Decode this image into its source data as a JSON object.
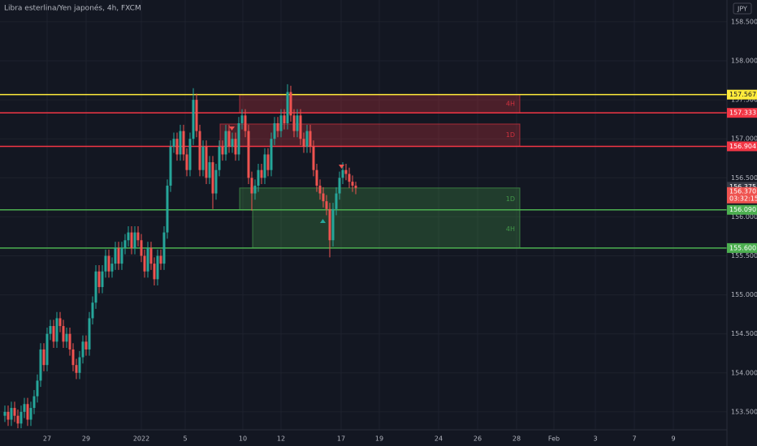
{
  "chart_data": {
    "type": "candlestick",
    "title": "Libra esterlina/Yen japonés, 4h, FXCM",
    "currency": "JPY",
    "open": [
      153.45,
      153.5,
      153.4,
      153.55,
      153.45,
      153.35,
      153.5,
      153.6,
      153.4,
      153.55,
      153.7,
      153.9,
      154.3,
      154.1,
      154.5,
      154.6,
      154.4,
      154.7,
      154.6,
      154.4,
      154.5,
      154.3,
      154.1,
      154.0,
      154.2,
      154.4,
      154.3,
      154.7,
      154.9,
      155.3,
      155.1,
      155.3,
      155.5,
      155.3,
      155.4,
      155.6,
      155.4,
      155.6,
      155.7,
      155.8,
      155.6,
      155.8,
      155.7,
      155.5,
      155.3,
      155.6,
      155.4,
      155.2,
      155.5,
      155.4,
      155.8,
      156.4,
      156.9,
      157.0,
      156.8,
      157.1,
      156.8,
      156.6,
      157.0,
      157.5,
      157.1,
      156.6,
      156.9,
      156.5,
      156.7,
      156.3,
      156.6,
      156.9,
      156.8,
      157.1,
      156.9,
      157.0,
      156.8,
      157.2,
      157.3,
      157.1,
      156.5,
      156.3,
      156.4,
      156.6,
      156.5,
      156.8,
      156.6,
      157.0,
      157.2,
      157.1,
      157.3,
      157.2,
      157.6,
      157.3,
      157.1,
      157.3,
      157.0,
      156.9,
      157.1,
      156.9,
      156.6,
      156.4,
      156.3,
      156.2,
      156.1,
      155.7,
      156.1,
      156.3,
      156.5,
      156.6,
      156.55,
      156.45,
      156.4
    ],
    "high": [
      153.58,
      153.58,
      153.63,
      153.63,
      153.53,
      153.58,
      153.68,
      153.68,
      153.63,
      153.78,
      153.98,
      154.38,
      154.38,
      154.58,
      154.68,
      154.68,
      154.78,
      154.78,
      154.68,
      154.58,
      154.58,
      154.38,
      154.18,
      154.28,
      154.48,
      154.48,
      154.78,
      154.98,
      155.38,
      155.38,
      155.38,
      155.58,
      155.58,
      155.48,
      155.68,
      155.68,
      155.68,
      155.78,
      155.88,
      155.88,
      155.88,
      155.88,
      155.78,
      155.58,
      155.68,
      155.68,
      155.48,
      155.58,
      155.58,
      155.88,
      156.48,
      156.98,
      157.08,
      157.08,
      157.18,
      157.18,
      156.88,
      157.08,
      157.65,
      157.58,
      157.18,
      156.98,
      156.98,
      156.78,
      156.78,
      156.68,
      156.98,
      156.98,
      157.18,
      157.18,
      157.08,
      157.08,
      157.28,
      157.38,
      157.38,
      157.18,
      156.58,
      156.48,
      156.68,
      156.68,
      156.88,
      156.88,
      157.08,
      157.28,
      157.28,
      157.38,
      157.38,
      157.7,
      157.68,
      157.38,
      157.38,
      157.38,
      157.08,
      157.18,
      157.18,
      156.98,
      156.68,
      156.48,
      156.38,
      156.28,
      156.18,
      156.18,
      156.38,
      156.58,
      156.7,
      156.68,
      156.63,
      156.53,
      156.45
    ],
    "low": [
      153.37,
      153.32,
      153.32,
      153.37,
      153.29,
      153.29,
      153.42,
      153.32,
      153.32,
      153.47,
      153.62,
      153.82,
      154.02,
      154.02,
      154.42,
      154.32,
      154.32,
      154.52,
      154.32,
      154.32,
      154.22,
      154.02,
      153.92,
      153.92,
      154.12,
      154.22,
      154.22,
      154.62,
      154.82,
      155.02,
      155.02,
      155.22,
      155.22,
      155.22,
      155.32,
      155.32,
      155.32,
      155.52,
      155.62,
      155.52,
      155.52,
      155.62,
      155.42,
      155.22,
      155.22,
      155.32,
      155.12,
      155.12,
      155.32,
      155.32,
      155.72,
      156.32,
      156.82,
      156.72,
      156.72,
      156.72,
      156.52,
      156.52,
      156.92,
      157.02,
      156.52,
      156.52,
      156.42,
      156.42,
      156.1,
      156.22,
      156.52,
      156.72,
      156.72,
      156.82,
      156.82,
      156.72,
      156.72,
      157.12,
      157.02,
      156.42,
      156.08,
      156.22,
      156.32,
      156.42,
      156.42,
      156.52,
      156.52,
      156.92,
      157.02,
      157.02,
      157.12,
      157.12,
      157.22,
      157.02,
      157.02,
      156.92,
      156.82,
      156.82,
      156.82,
      156.52,
      156.32,
      156.22,
      156.12,
      156.02,
      155.48,
      155.62,
      156.02,
      156.22,
      156.42,
      156.47,
      156.37,
      156.32,
      156.29
    ],
    "close": [
      153.5,
      153.4,
      153.55,
      153.45,
      153.35,
      153.5,
      153.6,
      153.4,
      153.55,
      153.7,
      153.9,
      154.3,
      154.1,
      154.5,
      154.6,
      154.4,
      154.7,
      154.6,
      154.4,
      154.5,
      154.3,
      154.1,
      154.0,
      154.2,
      154.4,
      154.3,
      154.7,
      154.9,
      155.3,
      155.1,
      155.3,
      155.5,
      155.3,
      155.4,
      155.6,
      155.4,
      155.6,
      155.7,
      155.8,
      155.6,
      155.8,
      155.7,
      155.5,
      155.3,
      155.6,
      155.4,
      155.2,
      155.5,
      155.4,
      155.8,
      156.4,
      156.9,
      157.0,
      156.8,
      157.1,
      156.8,
      156.6,
      157.0,
      157.5,
      157.1,
      156.6,
      156.9,
      156.5,
      156.7,
      156.3,
      156.6,
      156.9,
      156.8,
      157.1,
      156.9,
      157.0,
      156.8,
      157.2,
      157.3,
      157.1,
      156.5,
      156.3,
      156.4,
      156.6,
      156.5,
      156.8,
      156.6,
      157.0,
      157.2,
      157.1,
      157.3,
      157.2,
      157.6,
      157.3,
      157.1,
      157.3,
      157.0,
      156.9,
      157.1,
      156.9,
      156.6,
      156.4,
      156.3,
      156.2,
      156.1,
      155.7,
      156.1,
      156.3,
      156.5,
      156.6,
      156.55,
      156.45,
      156.4,
      156.37
    ],
    "up_color": "#26a69a",
    "down_color": "#ef5350",
    "xlim": [
      -1.5,
      222.25
    ],
    "ylim": [
      153.27,
      158.78
    ],
    "xticks": [
      {
        "value": 13,
        "label": "27"
      },
      {
        "value": 25,
        "label": "29"
      },
      {
        "value": 42,
        "label": "2022"
      },
      {
        "value": 55.5,
        "label": "5"
      },
      {
        "value": 73.25,
        "label": "10"
      },
      {
        "value": 85,
        "label": "12"
      },
      {
        "value": 103.5,
        "label": "17"
      },
      {
        "value": 115.25,
        "label": "19"
      },
      {
        "value": 133.5,
        "label": "24"
      },
      {
        "value": 145.5,
        "label": "26"
      },
      {
        "value": 157.5,
        "label": "28"
      },
      {
        "value": 169,
        "label": "Feb"
      },
      {
        "value": 181.75,
        "label": "3"
      },
      {
        "value": 193.75,
        "label": "7"
      },
      {
        "value": 205.75,
        "label": "9"
      }
    ],
    "yticks": [
      {
        "value": 153.5,
        "label": "153.500"
      },
      {
        "value": 154,
        "label": "154.000"
      },
      {
        "value": 154.5,
        "label": "154.500"
      },
      {
        "value": 155,
        "label": "155.000"
      },
      {
        "value": 155.5,
        "label": "155.500"
      },
      {
        "value": 156,
        "label": "156.000"
      },
      {
        "value": 156.5,
        "label": "156.500"
      },
      {
        "value": 157,
        "label": "157.000"
      },
      {
        "value": 157.5,
        "label": "157.500"
      },
      {
        "value": 158,
        "label": "158.000"
      },
      {
        "value": 158.5,
        "label": "158.500"
      }
    ],
    "grid": true,
    "zones": [
      {
        "label": "4H",
        "x": [
          72.25,
          158.5
        ],
        "range": [
          157.333,
          157.567
        ],
        "color": "#f23645"
      },
      {
        "label": "1D",
        "x": [
          66.25,
          158.5
        ],
        "range": [
          156.904,
          157.19
        ],
        "color": "#f23645"
      },
      {
        "label": "1D",
        "x": [
          72.25,
          158.5
        ],
        "range": [
          156.09,
          156.37
        ],
        "color": "#4caf50"
      },
      {
        "label": "4H",
        "x": [
          76.25,
          158.5
        ],
        "range": [
          155.6,
          156.09
        ],
        "color": "#4caf50"
      }
    ],
    "levels": [
      {
        "value": 157.567,
        "label": "157.567",
        "color": "#ffeb3b"
      },
      {
        "value": 157.333,
        "label": "157.333",
        "color": "#f23645"
      },
      {
        "value": 156.904,
        "label": "156.904",
        "color": "#f23645"
      },
      {
        "value": 156.09,
        "label": "156.090",
        "color": "#4caf50"
      },
      {
        "value": 155.6,
        "label": "155.600",
        "color": "#4caf50"
      }
    ],
    "crosshair_price": {
      "value": 156.375,
      "label": "156.375"
    },
    "last_price": {
      "value": 156.37,
      "label": "156.370",
      "countdown": "03:32:15"
    }
  }
}
